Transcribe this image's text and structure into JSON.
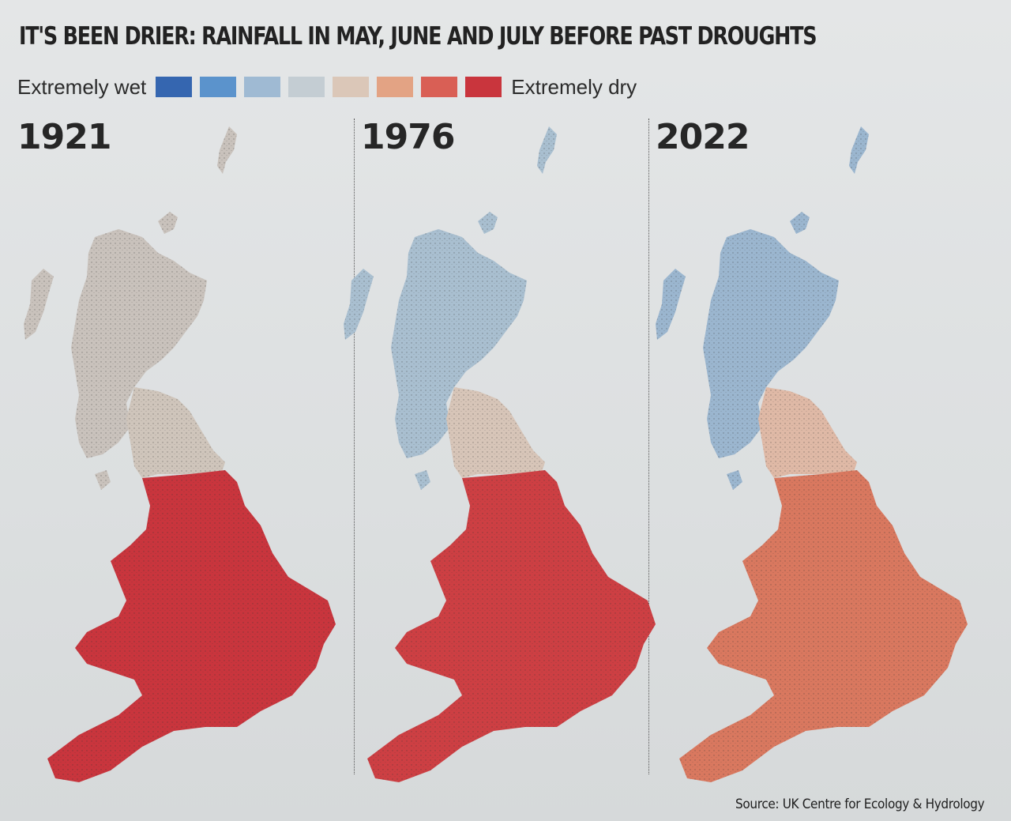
{
  "title": "IT'S BEEN DRIER: RAINFALL IN MAY, JUNE AND JULY BEFORE PAST DROUGHTS",
  "legend": {
    "wet_label": "Extremely wet",
    "dry_label": "Extremely dry",
    "colors": [
      "#3566b0",
      "#5b93cc",
      "#9fbad3",
      "#c4cdd3",
      "#dbc7b8",
      "#e3a384",
      "#d95f55",
      "#c9353d"
    ]
  },
  "maps": [
    {
      "year": "1921",
      "icon": "uk-rainfall-map",
      "scotland": "#c9c2bc",
      "north": "#cfc5bb",
      "south": "#c9353d"
    },
    {
      "year": "1976",
      "icon": "uk-rainfall-map",
      "scotland": "#a9bfd0",
      "north": "#d7c5b8",
      "south": "#cd3f43"
    },
    {
      "year": "2022",
      "icon": "uk-rainfall-map",
      "scotland": "#9bb6cf",
      "north": "#dfb9a6",
      "south": "#d9785f"
    }
  ],
  "source": "Source: UK Centre for Ecology & Hydrology"
}
